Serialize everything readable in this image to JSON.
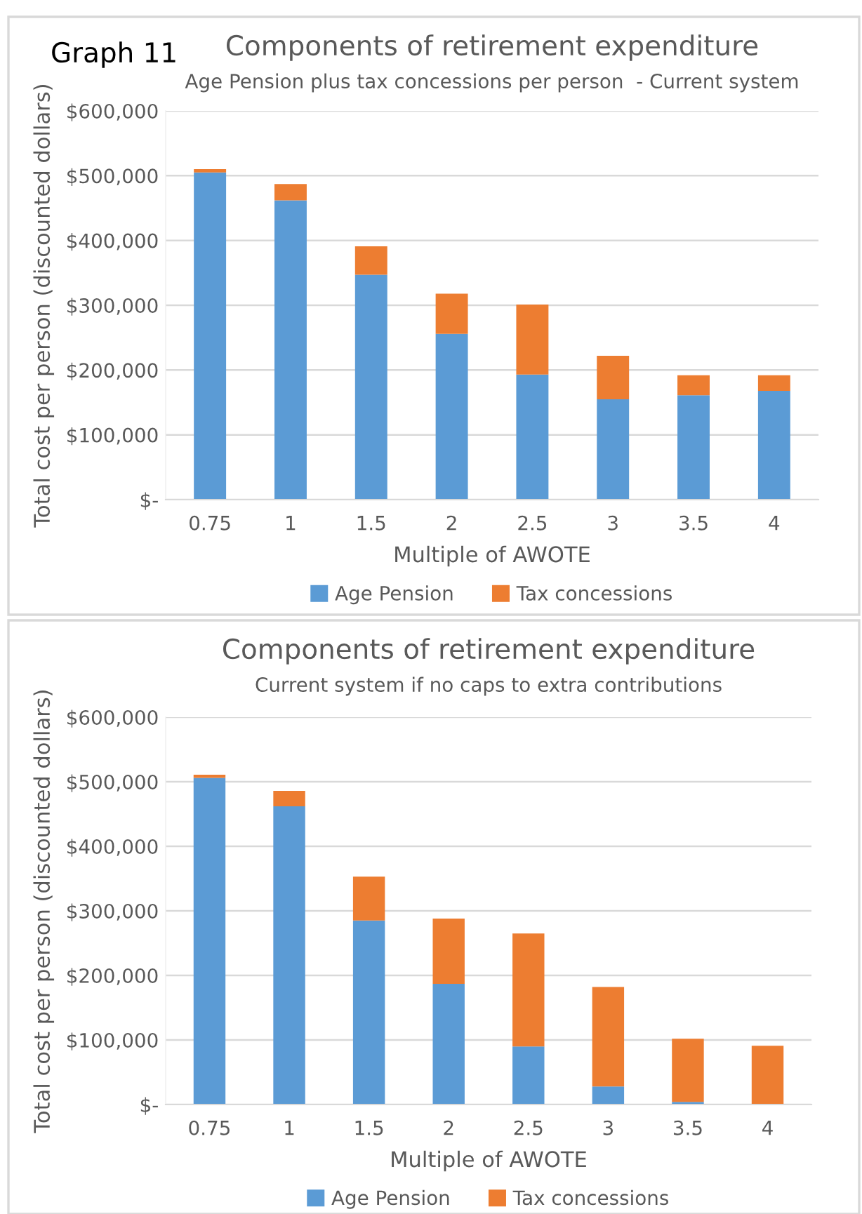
{
  "chart_data": [
    {
      "type": "bar",
      "stacked": true,
      "title": "Components of retirement expenditure",
      "subtitle": "Age Pension plus tax concessions per person  - Current system",
      "xlabel": "Multiple of AWOTE",
      "ylabel": "Total cost per person (discounted dollars)",
      "annotations": [
        "Graph 11"
      ],
      "categories": [
        "0.75",
        "1",
        "1.5",
        "2",
        "2.5",
        "3",
        "3.5",
        "4"
      ],
      "series": [
        {
          "name": "Age Pension",
          "color": "#5b9bd5",
          "values": [
            505000,
            462000,
            347000,
            256000,
            193000,
            155000,
            161000,
            168000
          ]
        },
        {
          "name": "Tax concessions",
          "color": "#ed7d31",
          "values": [
            5000,
            25000,
            44000,
            62000,
            108000,
            67000,
            31000,
            24000
          ]
        }
      ],
      "ylim": [
        0,
        600000
      ],
      "yticks": [
        {
          "value": 0,
          "label": "$-"
        },
        {
          "value": 100000,
          "label": "$100,000"
        },
        {
          "value": 200000,
          "label": "$200,000"
        },
        {
          "value": 300000,
          "label": "$300,000"
        },
        {
          "value": 400000,
          "label": "$400,000"
        },
        {
          "value": 500000,
          "label": "$500,000"
        },
        {
          "value": 600000,
          "label": "$600,000"
        }
      ],
      "grid": "y",
      "legend": "bottom"
    },
    {
      "type": "bar",
      "stacked": true,
      "title": "Components of retirement expenditure",
      "subtitle": "Current system if no caps to extra contributions",
      "xlabel": "Multiple of AWOTE",
      "ylabel": "Total cost per person (discounted dollars)",
      "categories": [
        "0.75",
        "1",
        "1.5",
        "2",
        "2.5",
        "3",
        "3.5",
        "4"
      ],
      "series": [
        {
          "name": "Age Pension",
          "color": "#5b9bd5",
          "values": [
            506000,
            462000,
            285000,
            187000,
            90000,
            28000,
            4000,
            0
          ]
        },
        {
          "name": "Tax concessions",
          "color": "#ed7d31",
          "values": [
            5000,
            24000,
            68000,
            101000,
            175000,
            154000,
            98000,
            91000
          ]
        }
      ],
      "ylim": [
        0,
        600000
      ],
      "yticks": [
        {
          "value": 0,
          "label": "$-"
        },
        {
          "value": 100000,
          "label": "$100,000"
        },
        {
          "value": 200000,
          "label": "$200,000"
        },
        {
          "value": 300000,
          "label": "$300,000"
        },
        {
          "value": 400000,
          "label": "$400,000"
        },
        {
          "value": 500000,
          "label": "$500,000"
        },
        {
          "value": 600000,
          "label": "$600,000"
        }
      ],
      "grid": "y",
      "legend": "bottom"
    }
  ]
}
